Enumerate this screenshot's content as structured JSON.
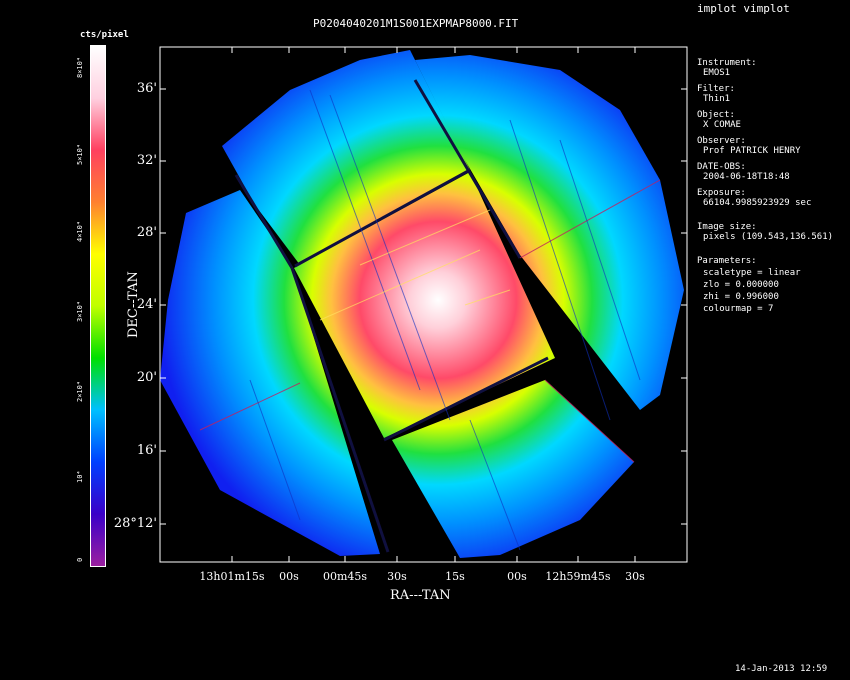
{
  "app": {
    "title": "implot vimplot",
    "timestamp": "14-Jan-2013 12:59"
  },
  "plot": {
    "title": "P0204040201M1S001EXPMAP8000.FIT",
    "xlabel": "RA---TAN",
    "ylabel": "DEC--TAN",
    "yticks": [
      "36'",
      "32'",
      "28'",
      "24'",
      "20'",
      "16'",
      "28°12'"
    ],
    "xticks": [
      "13h01m15s",
      "00s",
      "00m45s",
      "30s",
      "15s",
      "00s",
      "12h59m45s",
      "30s"
    ]
  },
  "colorbar": {
    "units": "cts/pixel",
    "colormap": [
      "#9b1fa0",
      "#3a00c8",
      "#0040ff",
      "#00c0ff",
      "#00e000",
      "#c0ff00",
      "#ffff00",
      "#ff8030",
      "#ff4060",
      "#ffd0e0",
      "#ffffff"
    ],
    "ticks": [
      "8×10⁴",
      "5×10⁴",
      "4×10⁴",
      "3×10⁴",
      "2×10⁴",
      "10⁴",
      "0"
    ]
  },
  "info": {
    "instrument_label": "Instrument:",
    "instrument": "EMOS1",
    "filter_label": "Filter:",
    "filter": "Thin1",
    "object_label": "Object:",
    "object": "X COMAE",
    "observer_label": "Observer:",
    "observer": "Prof PATRICK HENRY",
    "date_label": "DATE-OBS:",
    "date": "2004-06-18T18:48",
    "exposure_label": "Exposure:",
    "exposure": "66104.9985923929 sec",
    "size_label": "Image size:",
    "size": "pixels (109.543,136.561)",
    "params_label": "Parameters:",
    "scaletype": "scaletype = linear",
    "zlo": "zlo = 0.000000",
    "zhi": "zhi = 0.996000",
    "colourmap": "colourmap =   7"
  }
}
